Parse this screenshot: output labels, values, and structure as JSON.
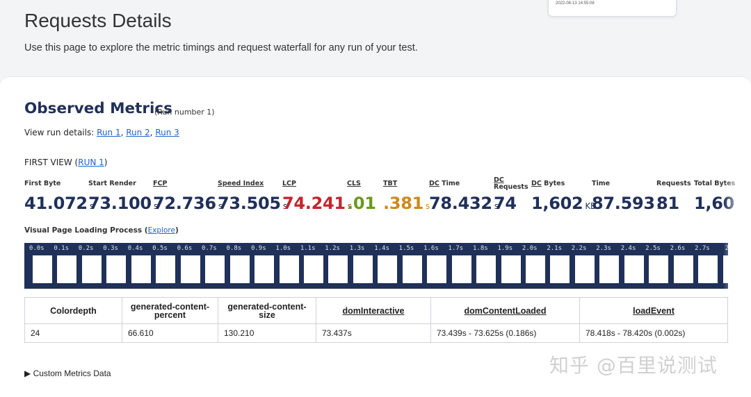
{
  "top_card": {
    "timestamp": "2022-08-13 14:55:08"
  },
  "page": {
    "title": "Requests Details",
    "description": "Use this page to explore the metric timings and request waterfall for any run of your test."
  },
  "observed": {
    "title": "Observed Metrics",
    "run_number": "(Run number 1)",
    "run_details_prefix": "View run details: ",
    "runs": [
      "Run 1",
      "Run 2",
      "Run 3"
    ],
    "first_view_prefix": "FIRST VIEW (",
    "first_view_link": "RUN 1",
    "first_view_suffix": ")"
  },
  "metrics": [
    {
      "label": "First Byte",
      "value": "41.072",
      "unit": "s",
      "color": "#1f3059"
    },
    {
      "label": "Start Render",
      "value": "73.100",
      "unit": "s",
      "color": "#1f3059"
    },
    {
      "label": "FCP",
      "value": "72.736",
      "unit": "s",
      "color": "#1f3059"
    },
    {
      "label": "Speed Index",
      "value": "73.505",
      "unit": "s",
      "color": "#1f3059"
    },
    {
      "label": "LCP",
      "value": "74.241",
      "unit": "s",
      "color": "#c2262e"
    },
    {
      "label": "CLS",
      "value": ".01",
      "unit": "",
      "color": "#6a9a1f"
    },
    {
      "label": "TBT",
      "value": ".381",
      "unit": "s",
      "color": "#cc8a1e"
    },
    {
      "label": "DC Time",
      "value": "78.432",
      "unit": "s",
      "color": "#1f3059"
    },
    {
      "label_line1": "DC",
      "label_line2": "Requests",
      "value": "74",
      "unit": "",
      "color": "#1f3059"
    },
    {
      "label": "DC Bytes",
      "value": "1,602",
      "unit": "KB",
      "color": "#1f3059"
    },
    {
      "label": "Time",
      "value": "87.593",
      "unit": "s",
      "color": "#1f3059"
    },
    {
      "label": "Requests",
      "value": "81",
      "unit": "",
      "color": "#1f3059"
    },
    {
      "label": "Total Bytes",
      "value": "1,60",
      "unit": "",
      "color": "#1f3059"
    }
  ],
  "filmstrip": {
    "label": "Visual Page Loading Process",
    "explore_open": " (",
    "explore": "Explore",
    "explore_close": ")",
    "times": [
      "0.0s",
      "0.1s",
      "0.2s",
      "0.3s",
      "0.4s",
      "0.5s",
      "0.6s",
      "0.7s",
      "0.8s",
      "0.9s",
      "1.0s",
      "1.1s",
      "1.2s",
      "1.3s",
      "1.4s",
      "1.5s",
      "1.6s",
      "1.7s",
      "1.8s",
      "1.9s",
      "2.0s",
      "2.1s",
      "2.2s",
      "2.3s",
      "2.4s",
      "2.5s",
      "2.6s",
      "2.7s",
      "2"
    ]
  },
  "custom_table": {
    "headers": [
      "Colordepth",
      "generated-content-percent",
      "generated-content-size",
      "domInteractive",
      "domContentLoaded",
      "loadEvent"
    ],
    "row": [
      "24",
      "66.610",
      "130.210",
      "73.437s",
      "73.439s - 73.625s (0.186s)",
      "78.418s - 78.420s (0.002s)"
    ]
  },
  "custom_metrics": "▶ Custom Metrics Data",
  "watermark": "知乎 @百里说测试"
}
